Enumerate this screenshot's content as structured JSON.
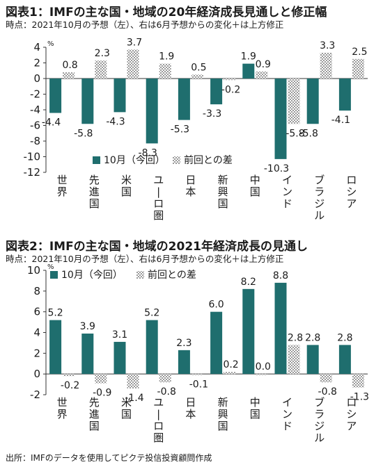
{
  "source": "出所：IMFのデータを使用してピクテ投信投資顧問作成",
  "chart_data": [
    {
      "type": "bar",
      "title": "図表1：IMFの主な国・地域の20年経済成長見通しと修正幅",
      "subtitle": "時点：2021年10月の予想（左）、右は6月予想からの変化＋は上方修正",
      "unit": "%",
      "categories": [
        "世界",
        "先進国",
        "米国",
        "ユーロ圏",
        "日本",
        "新興国",
        "中国",
        "インド",
        "ブラジル",
        "ロシア"
      ],
      "series": [
        {
          "name": "10月（今回）",
          "color": "#1f6e6e",
          "values": [
            -4.4,
            -5.8,
            -4.3,
            -8.3,
            -5.3,
            -3.3,
            1.9,
            -10.3,
            -5.8,
            -4.1
          ]
        },
        {
          "name": "前回との差",
          "color": "#c8c8c8",
          "pattern": "checker",
          "values": [
            0.8,
            2.3,
            3.7,
            1.9,
            0.5,
            -0.2,
            0.9,
            -5.8,
            3.3,
            2.5
          ]
        }
      ],
      "ylim": [
        -12,
        4
      ],
      "yticks": [
        4,
        2,
        0,
        -2,
        -4,
        -6,
        -8,
        -10,
        -12
      ],
      "legend": "bottom-left inside plot"
    },
    {
      "type": "bar",
      "title": "図表2：IMFの主な国・地域の2021年経済成長の見通し",
      "subtitle": "時点：2021年10月の予想（左）、右は6月予想からの変化＋は上方修正",
      "unit": "%",
      "categories": [
        "世界",
        "先進国",
        "米国",
        "ユーロ圏",
        "日本",
        "新興国",
        "中国",
        "インド",
        "ブラジル",
        "ロシア"
      ],
      "series": [
        {
          "name": "10月（今回）",
          "color": "#1f6e6e",
          "values": [
            5.2,
            3.9,
            3.1,
            5.2,
            2.3,
            6.0,
            8.2,
            8.8,
            2.8,
            2.8
          ]
        },
        {
          "name": "前回との差",
          "color": "#c8c8c8",
          "pattern": "checker",
          "values": [
            -0.2,
            -0.9,
            -1.4,
            -0.8,
            -0.1,
            0.2,
            0.0,
            2.8,
            -0.8,
            -1.3
          ]
        }
      ],
      "ylim": [
        -2,
        10
      ],
      "yticks": [
        10,
        8,
        6,
        4,
        2,
        0,
        -2
      ],
      "legend": "top-left inside plot"
    }
  ]
}
